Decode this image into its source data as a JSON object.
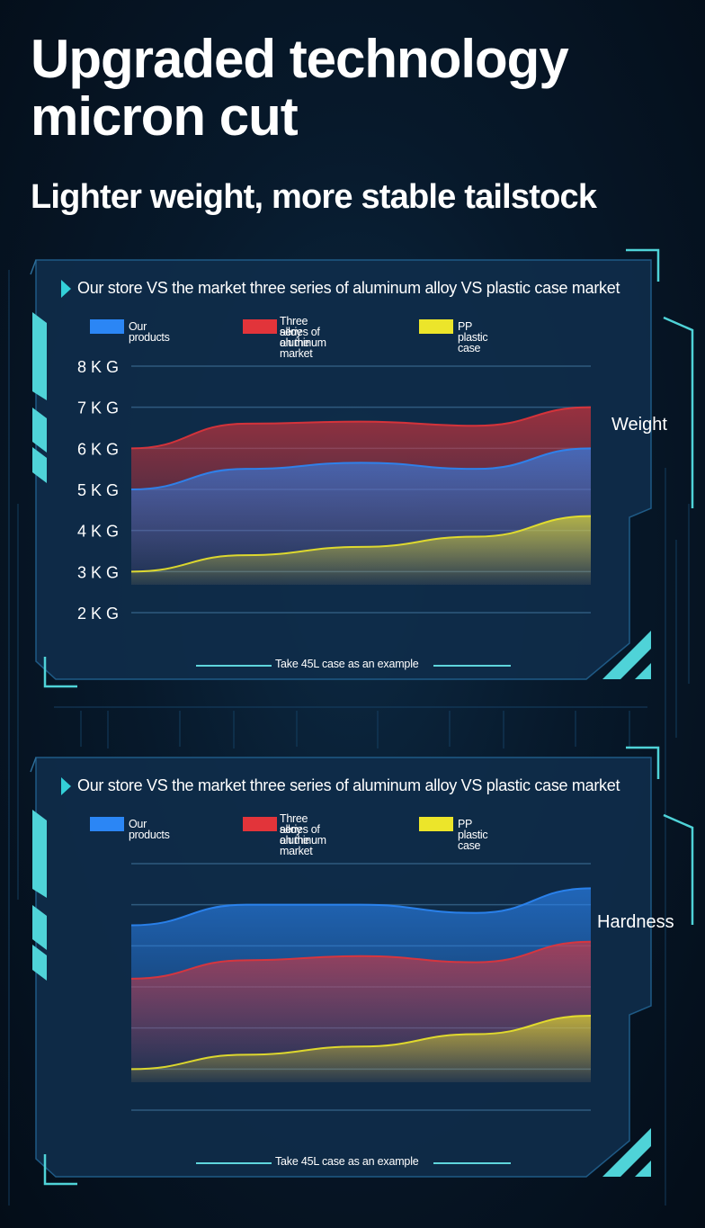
{
  "header": {
    "title_line1": "Upgraded technology",
    "title_line2": "micron cut",
    "subtitle": "Lighter weight, more stable tailstock"
  },
  "colors": {
    "accent_cyan": "#4fd3d8",
    "panel_fill": "#0f2c4a",
    "our_products": "#2b86f5",
    "aluminum": "#e2343a",
    "pp_plastic": "#ece52a"
  },
  "panels": [
    {
      "title": "Our store VS the market three series of aluminum alloy VS plastic case market",
      "legend": [
        "Our products",
        "Three series of aluminum",
        "alloy on the market",
        "PP plastic case"
      ],
      "side_label": "Weight",
      "footnote": "Take 45L case as an example"
    },
    {
      "title": "Our store VS the market three series of aluminum alloy VS plastic case market",
      "legend": [
        "Our products",
        "Three series of aluminum",
        "alloy on the market",
        "PP plastic case"
      ],
      "side_label": "Hardness",
      "footnote": "Take 45L case as an example"
    }
  ],
  "chart_data": [
    {
      "type": "area",
      "title": "Our store VS the market three series of aluminum alloy VS plastic case market",
      "xlabel": "",
      "ylabel": "Weight",
      "y_ticks": [
        "8KG",
        "7KG",
        "6KG",
        "5KG",
        "4KG",
        "3KG",
        "2KG"
      ],
      "ylim": [
        2,
        8
      ],
      "x": [
        0,
        0.25,
        0.5,
        0.75,
        1
      ],
      "series": [
        {
          "name": "Three series of aluminum alloy on the market",
          "values": [
            6.0,
            6.6,
            6.65,
            6.55,
            7.0
          ]
        },
        {
          "name": "Our products",
          "values": [
            5.0,
            5.5,
            5.65,
            5.5,
            6.0
          ]
        },
        {
          "name": "PP plastic case",
          "values": [
            3.0,
            3.4,
            3.6,
            3.85,
            4.35
          ]
        }
      ],
      "grid": true,
      "legend": "top"
    },
    {
      "type": "area",
      "title": "Our store VS the market three series of aluminum alloy VS plastic case market",
      "xlabel": "",
      "ylabel": "Hardness",
      "y_ticks": [],
      "ylim": [
        2,
        8
      ],
      "x": [
        0,
        0.25,
        0.5,
        0.75,
        1
      ],
      "series": [
        {
          "name": "Our products",
          "values": [
            6.5,
            7.0,
            7.0,
            6.8,
            7.4
          ]
        },
        {
          "name": "Three series of aluminum alloy on the market",
          "values": [
            5.2,
            5.65,
            5.75,
            5.6,
            6.1
          ]
        },
        {
          "name": "PP plastic case",
          "values": [
            3.0,
            3.35,
            3.55,
            3.85,
            4.3
          ]
        }
      ],
      "grid": true,
      "legend": "top"
    }
  ]
}
